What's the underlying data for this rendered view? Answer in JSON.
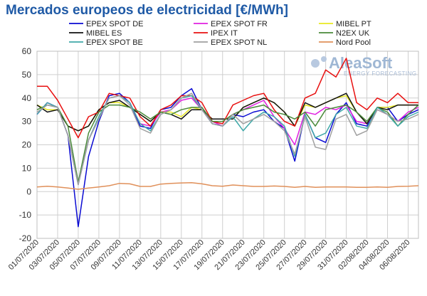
{
  "title": "Mercados europeos de electricidad [€/MWh]",
  "watermark": {
    "brand": "AleaSoft",
    "tagline": "ENERGY FORECASTING"
  },
  "chart_data": {
    "type": "line",
    "ylim": [
      -20,
      60
    ],
    "yticks": [
      -20,
      -10,
      0,
      10,
      20,
      30,
      40,
      50,
      60
    ],
    "grid": true,
    "legend_position": "top",
    "x": [
      "01/07/2020",
      "02/07/2020",
      "03/07/2020",
      "04/07/2020",
      "05/07/2020",
      "06/07/2020",
      "07/07/2020",
      "08/07/2020",
      "09/07/2020",
      "10/07/2020",
      "11/07/2020",
      "12/07/2020",
      "13/07/2020",
      "14/07/2020",
      "15/07/2020",
      "16/07/2020",
      "17/07/2020",
      "18/07/2020",
      "19/07/2020",
      "20/07/2020",
      "21/07/2020",
      "22/07/2020",
      "23/07/2020",
      "24/07/2020",
      "25/07/2020",
      "26/07/2020",
      "27/07/2020",
      "28/07/2020",
      "29/07/2020",
      "30/07/2020",
      "31/07/2020",
      "01/08/2020",
      "02/08/2020",
      "03/08/2020",
      "04/08/2020",
      "05/08/2020",
      "06/08/2020",
      "07/08/2020"
    ],
    "xtick_labels": [
      "01/07/2020",
      "03/07/2020",
      "05/07/2020",
      "07/07/2020",
      "09/07/2020",
      "11/07/2020",
      "13/07/2020",
      "15/07/2020",
      "17/07/2020",
      "19/07/2020",
      "21/07/2020",
      "23/07/2020",
      "25/07/2020",
      "27/07/2020",
      "29/07/2020",
      "31/07/2020",
      "02/08/2020",
      "04/08/2020",
      "06/08/2020"
    ],
    "series": [
      {
        "name": "EPEX SPOT DE",
        "color": "#0a0ad2",
        "values": [
          33,
          38,
          36,
          24,
          -15,
          15,
          30,
          41,
          42,
          38,
          28,
          27,
          35,
          36,
          41,
          44,
          35,
          29,
          28,
          33,
          32,
          34,
          35,
          30,
          27,
          13,
          33,
          23,
          21,
          33,
          38,
          29,
          28,
          36,
          36,
          30,
          33,
          35
        ]
      },
      {
        "name": "EPEX SPOT FR",
        "color": "#e020e0",
        "values": [
          33,
          38,
          36,
          24,
          3,
          22,
          32,
          40,
          41,
          38,
          29,
          28,
          34,
          35,
          39,
          40,
          35,
          30,
          28,
          33,
          35,
          37,
          39,
          32,
          27,
          20,
          34,
          33,
          36,
          35,
          37,
          30,
          29,
          35,
          33,
          30,
          34,
          36
        ]
      },
      {
        "name": "MIBEL PT",
        "color": "#e8e820",
        "values": [
          37,
          35,
          35,
          28,
          26,
          28,
          35,
          38,
          38,
          36,
          33,
          30,
          34,
          34,
          32,
          36,
          35,
          31,
          31,
          31,
          36,
          38,
          40,
          38,
          34,
          28,
          37,
          36,
          38,
          40,
          41,
          34,
          29,
          36,
          36,
          37,
          37,
          37
        ]
      },
      {
        "name": "MIBEL ES",
        "color": "#111111",
        "values": [
          37,
          34,
          35,
          28,
          26,
          28,
          35,
          38,
          39,
          36,
          33,
          30,
          34,
          33,
          31,
          35,
          35,
          31,
          31,
          31,
          36,
          38,
          40,
          38,
          34,
          28,
          38,
          36,
          38,
          40,
          42,
          34,
          29,
          36,
          35,
          37,
          37,
          37
        ]
      },
      {
        "name": "IPEX IT",
        "color": "#e81010",
        "values": [
          45,
          45,
          39,
          31,
          23,
          32,
          34,
          42,
          41,
          40,
          32,
          28,
          35,
          37,
          41,
          41,
          38,
          30,
          29,
          37,
          39,
          41,
          42,
          35,
          30,
          28,
          40,
          42,
          52,
          49,
          57,
          38,
          35,
          40,
          38,
          42,
          38,
          38
        ]
      },
      {
        "name": "N2EX UK",
        "color": "#4a8a3a",
        "values": [
          35,
          37,
          36,
          28,
          4,
          25,
          34,
          37,
          37,
          36,
          34,
          31,
          34,
          33,
          35,
          36,
          36,
          30,
          30,
          33,
          35,
          36,
          37,
          34,
          33,
          31,
          34,
          28,
          35,
          36,
          37,
          34,
          30,
          36,
          34,
          28,
          33,
          37
        ]
      },
      {
        "name": "EPEX SPOT BE",
        "color": "#3fa8a8",
        "values": [
          33,
          38,
          36,
          24,
          3,
          22,
          32,
          40,
          41,
          38,
          29,
          26,
          33,
          35,
          40,
          41,
          35,
          29,
          28,
          32,
          26,
          31,
          34,
          32,
          28,
          15,
          33,
          23,
          25,
          33,
          36,
          28,
          27,
          36,
          33,
          28,
          32,
          34
        ]
      },
      {
        "name": "EPEX SPOT NL",
        "color": "#a0a0a0",
        "values": [
          34,
          37,
          36,
          24,
          3,
          22,
          31,
          40,
          41,
          37,
          27,
          25,
          33,
          35,
          40,
          42,
          35,
          29,
          28,
          33,
          29,
          31,
          33,
          30,
          26,
          16,
          32,
          19,
          18,
          31,
          33,
          24,
          26,
          35,
          33,
          30,
          31,
          33
        ]
      },
      {
        "name": "Nord Pool",
        "color": "#e0905a",
        "values": [
          2,
          2.3,
          2,
          1.5,
          1,
          1.5,
          2,
          2.5,
          3.5,
          3.3,
          2.2,
          2.2,
          3.2,
          3.5,
          3.7,
          3.8,
          3.3,
          2.5,
          2.3,
          2.8,
          2.5,
          2.2,
          2.2,
          2.4,
          2.2,
          1.8,
          2.2,
          1.8,
          2,
          2,
          2,
          1.8,
          1.8,
          2,
          1.8,
          2.2,
          2.3,
          2.5
        ]
      }
    ]
  }
}
